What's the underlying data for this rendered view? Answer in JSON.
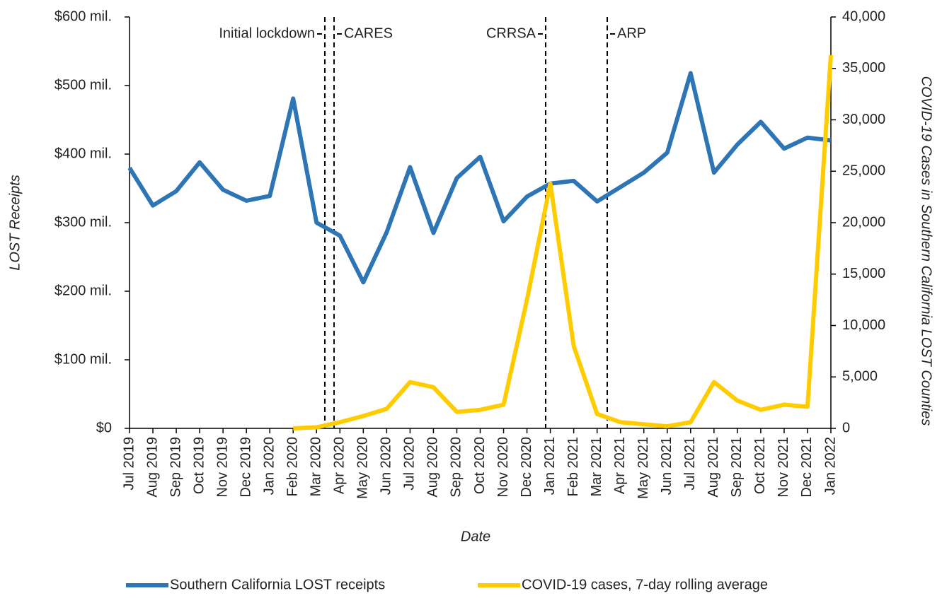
{
  "chart_data": {
    "type": "line",
    "categories": [
      "Jul 2019",
      "Aug 2019",
      "Sep 2019",
      "Oct 2019",
      "Nov 2019",
      "Dec 2019",
      "Jan 2020",
      "Feb 2020",
      "Mar 2020",
      "Apr 2020",
      "May 2020",
      "Jun 2020",
      "Jul 2020",
      "Aug 2020",
      "Sep 2020",
      "Oct 2020",
      "Nov 2020",
      "Dec 2020",
      "Jan 2021",
      "Feb 2021",
      "Mar 2021",
      "Apr 2021",
      "May 2021",
      "Jun 2021",
      "Jul 2021",
      "Aug 2021",
      "Sep 2021",
      "Oct 2021",
      "Nov 2021",
      "Dec 2021",
      "Jan 2022"
    ],
    "series": [
      {
        "name": "Southern California LOST receipts",
        "color": "#2e75b6",
        "values": [
          380,
          325,
          346,
          388,
          348,
          332,
          339,
          481,
          300,
          281,
          213,
          286,
          381,
          285,
          365,
          396,
          302,
          338,
          357,
          361,
          331,
          352,
          373,
          402,
          518,
          373,
          414,
          447,
          408,
          424,
          420
        ]
      },
      {
        "name": "COVID-19 cases, 7-day rolling average",
        "color": "#ffcc00",
        "axis": "y2",
        "values": [
          null,
          null,
          null,
          null,
          null,
          null,
          null,
          0,
          100,
          600,
          1200,
          1900,
          4500,
          4000,
          1600,
          1800,
          2300,
          12500,
          23800,
          8000,
          1400,
          600,
          400,
          200,
          600,
          4500,
          2700,
          1800,
          2300,
          2100,
          36300
        ]
      }
    ],
    "xlabel": "Date",
    "ylabel": "LOST Receipts",
    "y2label": "COVID-19 Cases in Southern California LOST Counties",
    "ylim": [
      0,
      600
    ],
    "yticks": [
      {
        "value": 0,
        "label": "$0"
      },
      {
        "value": 100,
        "label": "$100 mil."
      },
      {
        "value": 200,
        "label": "$200 mil."
      },
      {
        "value": 300,
        "label": "$300 mil."
      },
      {
        "value": 400,
        "label": "$400 mil."
      },
      {
        "value": 500,
        "label": "$500 mil."
      },
      {
        "value": 600,
        "label": "$600 mil."
      }
    ],
    "y2lim": [
      0,
      40000
    ],
    "y2ticks": [
      0,
      {
        "value": 5000,
        "label": "5,000"
      },
      {
        "value": 10000,
        "label": "10,000"
      },
      {
        "value": 15000,
        "label": "15,000"
      },
      {
        "value": 20000,
        "label": "20,000"
      },
      {
        "value": 25000,
        "label": "25,000"
      },
      {
        "value": 30000,
        "label": "30,000"
      },
      {
        "value": 35000,
        "label": "35,000"
      },
      {
        "value": 40000,
        "label": "40,000"
      }
    ],
    "annotations": [
      "Initial lockdown",
      "CARES",
      "CRRSA",
      "ARP"
    ],
    "legend": "bottom",
    "grid": false
  }
}
